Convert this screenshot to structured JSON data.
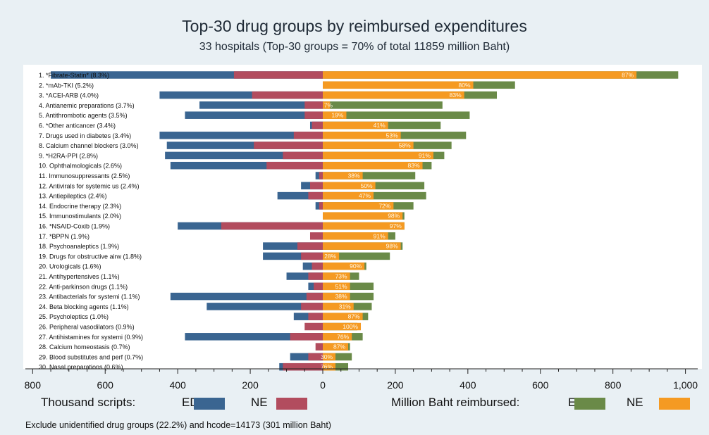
{
  "chart_data": {
    "type": "bar",
    "title": "Top-30 drug groups by reimbursed expenditures",
    "subtitle": "33 hospitals (Top-30 groups = 70% of total 11859 million Baht)",
    "xlim": [
      -800,
      1000
    ],
    "x_ticks": [
      -800,
      -600,
      -400,
      -200,
      0,
      200,
      400,
      600,
      800,
      1000
    ],
    "x_tick_labels": [
      "800",
      "600",
      "400",
      "200",
      "0",
      "200",
      "400",
      "600",
      "800",
      "1,000"
    ],
    "colors": {
      "scripts_ed": "#3a6591",
      "scripts_ne": "#b24c5e",
      "baht_ed": "#6a8a48",
      "baht_ne": "#f59a22"
    },
    "categories": [
      "1. *Fibrate-Statin* (8.3%)",
      "2. *mAb-TKI (5.2%)",
      "3. *ACEI-ARB (4.0%)",
      "4. Antianemic preparations (3.7%)",
      "5. Antithrombotic agents (3.5%)",
      "6. *Other anticancer (3.4%)",
      "7. Drugs used in diabetes (3.4%)",
      "8. Calcium channel blockers (3.0%)",
      "9. *H2RA-PPI (2.8%)",
      "10. Ophthalmologicals (2.6%)",
      "11. Immunosuppressants (2.5%)",
      "12. Antivirals for systemic us (2.4%)",
      "13. Antiepileptics (2.4%)",
      "14. Endocrine therapy (2.3%)",
      "15. Immunostimulants (2.0%)",
      "16. *NSAID-Coxib (1.9%)",
      "17. *BPPN (1.9%)",
      "18. Psychoanaleptics (1.9%)",
      "19. Drugs for obstructive airw (1.8%)",
      "20. Urologicals (1.6%)",
      "21. Antihypertensives (1.1%)",
      "22. Anti-parkinson drugs (1.1%)",
      "23. Antibacterials for systemi (1.1%)",
      "24. Beta blocking agents (1.1%)",
      "25. Psycholeptics (1.0%)",
      "26. Peripheral vasodilators (0.9%)",
      "27. Antihistamines for systemi (0.9%)",
      "28. Calcium homeostasis (0.7%)",
      "29. Blood substitutes and perf (0.7%)",
      "30. Nasal preparations (0.6%)"
    ],
    "series": [
      {
        "name": "ED",
        "group": "Thousand scripts",
        "values": [
          -750,
          0,
          -450,
          -340,
          -380,
          -35,
          -450,
          -430,
          -435,
          -420,
          -20,
          -60,
          -125,
          -20,
          0,
          -400,
          0,
          -165,
          -165,
          -55,
          -100,
          -40,
          -420,
          -320,
          -80,
          0,
          -380,
          0,
          -90,
          -120
        ]
      },
      {
        "name": "NE",
        "group": "Thousand scripts",
        "values": [
          -245,
          0,
          -195,
          -50,
          -50,
          -30,
          -80,
          -190,
          -110,
          -155,
          -10,
          -35,
          -40,
          -10,
          0,
          -280,
          -35,
          -70,
          -60,
          -30,
          -40,
          -25,
          -45,
          -60,
          -40,
          -50,
          -90,
          -20,
          -40,
          -110
        ]
      },
      {
        "name": "E",
        "group": "Million Baht reimbursed",
        "values": [
          980,
          530,
          480,
          330,
          405,
          325,
          395,
          355,
          335,
          300,
          255,
          280,
          285,
          250,
          225,
          225,
          200,
          220,
          185,
          120,
          100,
          140,
          140,
          135,
          125,
          95,
          110,
          75,
          80,
          70
        ]
      },
      {
        "name": "NE",
        "group": "Million Baht reimbursed",
        "values": [
          865,
          415,
          390,
          20,
          65,
          180,
          215,
          250,
          305,
          275,
          110,
          145,
          140,
          195,
          220,
          225,
          180,
          215,
          45,
          115,
          75,
          75,
          75,
          85,
          110,
          105,
          80,
          70,
          35,
          35
        ]
      }
    ],
    "bar_labels": [
      "87%",
      "80%",
      "83%",
      "7%",
      "19%",
      "41%",
      "53%",
      "58%",
      "91%",
      "83%",
      "38%",
      "50%",
      "47%",
      "72%",
      "98%",
      "97%",
      "91%",
      "98%",
      "28%",
      "90%",
      "73%",
      "51%",
      "38%",
      "31%",
      "87%",
      "100%",
      "76%",
      "87%",
      "30%",
      "76%"
    ],
    "legend": {
      "scripts_label": "Thousand scripts:",
      "scripts_ed": "ED",
      "scripts_ne": "NE",
      "baht_label": "Million Baht reimbursed:",
      "baht_ed": "E",
      "baht_ne": "NE"
    },
    "note": "Exclude unidentified drug groups (22.2%) and hcode=14173 (301 million Baht)"
  }
}
